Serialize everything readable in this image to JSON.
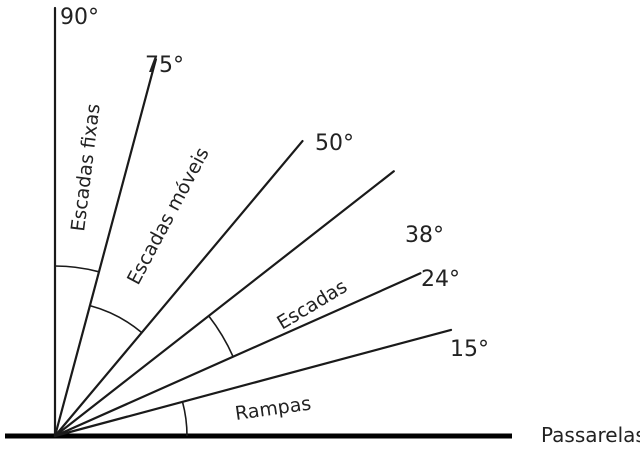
{
  "diagram": {
    "angles": [
      {
        "degrees": 90,
        "label": "90°"
      },
      {
        "degrees": 75,
        "label": "75°"
      },
      {
        "degrees": 50,
        "label": "50°"
      },
      {
        "degrees": 38,
        "label": "38°"
      },
      {
        "degrees": 24,
        "label": "24°"
      },
      {
        "degrees": 15,
        "label": "15°"
      }
    ],
    "ranges": [
      {
        "name": "Escadas fixas",
        "from_degrees": 75,
        "to_degrees": 90
      },
      {
        "name": "Escadas móveis",
        "from_degrees": 50,
        "to_degrees": 75
      },
      {
        "name": "Escadas",
        "from_degrees": 24,
        "to_degrees": 38
      },
      {
        "name": "Rampas",
        "from_degrees": 0,
        "to_degrees": 15
      }
    ],
    "ground_label": "Passarelas"
  }
}
